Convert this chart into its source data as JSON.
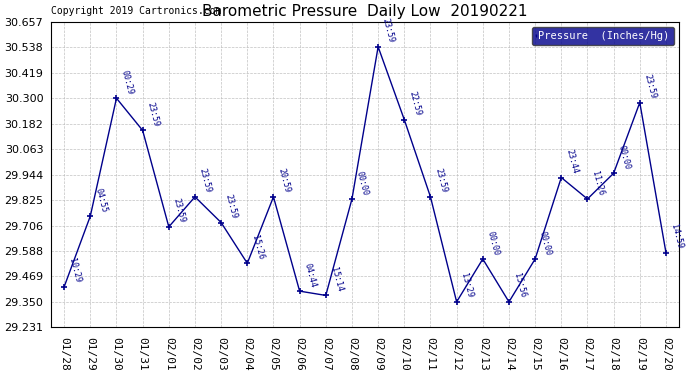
{
  "title": "Barometric Pressure  Daily Low  20190221",
  "copyright": "Copyright 2019 Cartronics.com",
  "legend_label": "Pressure  (Inches/Hg)",
  "background_color": "#ffffff",
  "line_color": "#00008B",
  "dates": [
    "01/28",
    "01/29",
    "01/30",
    "01/31",
    "02/01",
    "02/02",
    "02/03",
    "02/04",
    "02/05",
    "02/06",
    "02/07",
    "02/08",
    "02/09",
    "02/10",
    "02/11",
    "02/12",
    "02/13",
    "02/14",
    "02/15",
    "02/16",
    "02/17",
    "02/18",
    "02/19",
    "02/20"
  ],
  "values": [
    29.42,
    29.75,
    30.3,
    30.15,
    29.7,
    29.84,
    29.72,
    29.53,
    29.84,
    29.4,
    29.38,
    29.83,
    30.54,
    30.2,
    29.84,
    29.35,
    29.55,
    29.35,
    29.55,
    29.93,
    29.83,
    29.95,
    30.28,
    29.58
  ],
  "point_labels": [
    "10:29",
    "04:55",
    "00:29",
    "23:59",
    "23:59",
    "23:59",
    "23:59",
    "15:26",
    "20:59",
    "04:44",
    "15:14",
    "00:00",
    "23:59",
    "22:59",
    "23:59",
    "13:29",
    "00:00",
    "15:56",
    "00:00",
    "23:44",
    "11:26",
    "00:00",
    "23:59",
    "14:59"
  ],
  "ylim_min": 29.231,
  "ylim_max": 30.657,
  "yticks": [
    29.231,
    29.35,
    29.469,
    29.588,
    29.706,
    29.825,
    29.944,
    30.063,
    30.182,
    30.3,
    30.419,
    30.538,
    30.657
  ]
}
